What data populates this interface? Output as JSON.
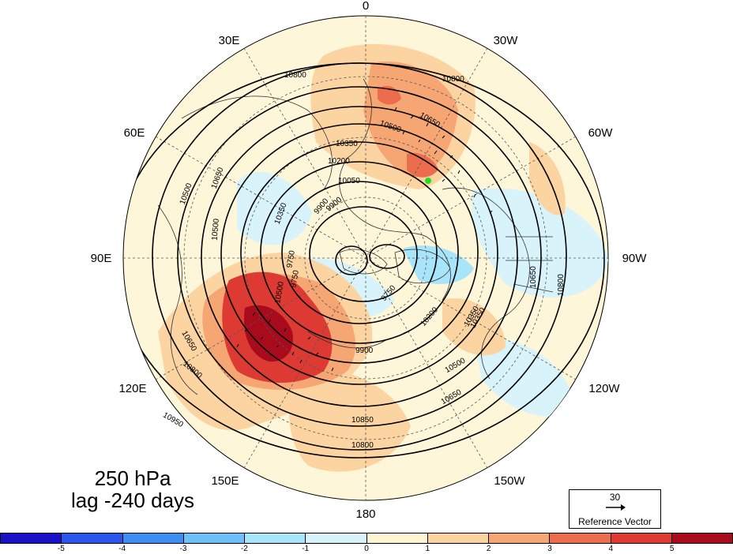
{
  "title_line1": "250 hPa",
  "title_line2": "lag -240 days",
  "longitude_labels": {
    "top": "0",
    "bottom": "180",
    "left": "90E",
    "right": "90W",
    "ul1": "30E",
    "ul2": "60E",
    "ur1": "30W",
    "ur2": "60W",
    "ll1": "120E",
    "ll2": "150E",
    "lr1": "120W",
    "lr2": "150W"
  },
  "contour_labels": {
    "c1": "10800",
    "c2": "10650",
    "c3": "10500",
    "c4": "10350",
    "c5": "10200",
    "c6": "10050",
    "c7": "9900",
    "c8": "9750",
    "c9": "10800",
    "c10": "10650",
    "c11": "10500",
    "c12": "10950",
    "c13": "10800",
    "c14": "10650",
    "c15": "10500",
    "c16": "10850",
    "c17": "10800",
    "c18": "10650",
    "c19": "10500",
    "c20": "10350",
    "c21": "10200",
    "c22": "9900",
    "c23": "9750",
    "c24": "10800",
    "c25": "10650",
    "c26": "10500",
    "c27": "10350",
    "c28": "9900",
    "c29": "9750",
    "c30": "10350"
  },
  "reference_vector": {
    "value": "30",
    "caption": "Reference Vector"
  },
  "colorbar": {
    "ticks": [
      "-5",
      "-4",
      "-3",
      "-2",
      "-1",
      "0",
      "1",
      "2",
      "3",
      "4",
      "5"
    ],
    "colors": [
      "#1a10c8",
      "#2a55e8",
      "#3d8ef0",
      "#6ec0f8",
      "#a8e4fa",
      "#d8f3fa",
      "#fff5d2",
      "#fbd4a2",
      "#f5a673",
      "#ec6d4e",
      "#dc3a32",
      "#a80c1c"
    ]
  }
}
